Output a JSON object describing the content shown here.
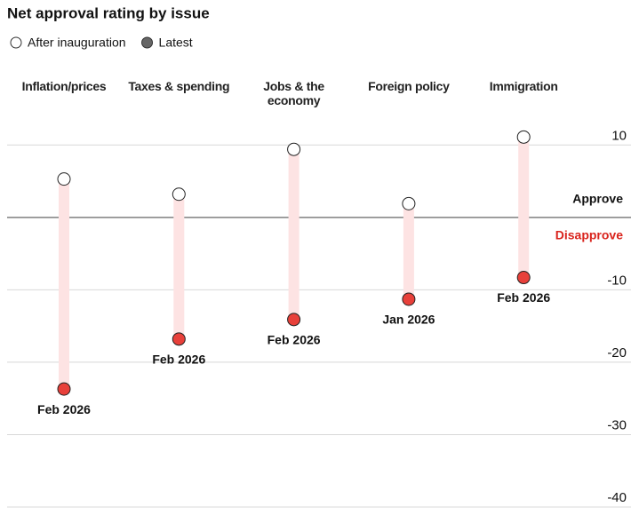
{
  "chart_data": {
    "type": "dumbbell",
    "title": "Net approval rating by issue",
    "categories": [
      "Inflation/prices",
      "Taxes & spending",
      "Jobs & the economy",
      "Foreign policy",
      "Immigration"
    ],
    "series": [
      {
        "name": "After inauguration",
        "color": "#ffffff",
        "legend_color": "#ffffff",
        "values": [
          5.3,
          3.2,
          9.4,
          1.9,
          11.1
        ]
      },
      {
        "name": "Latest",
        "color": "#e8403a",
        "legend_color": "#666666",
        "values": [
          -23.7,
          -16.8,
          -14.1,
          -11.3,
          -8.3
        ],
        "date_labels": [
          "Feb 2026",
          "Feb 2026",
          "Feb 2026",
          "Jan 2026",
          "Feb 2026"
        ]
      }
    ],
    "bar_color": "#fde3e3",
    "ylim": [
      -40,
      12
    ],
    "yticks": [
      10,
      -10,
      -20,
      -30,
      -40
    ],
    "grid": true,
    "annotations": [
      {
        "text": "Approve",
        "color": "#111111"
      },
      {
        "text": "Disapprove",
        "color": "#d9231c"
      }
    ]
  }
}
